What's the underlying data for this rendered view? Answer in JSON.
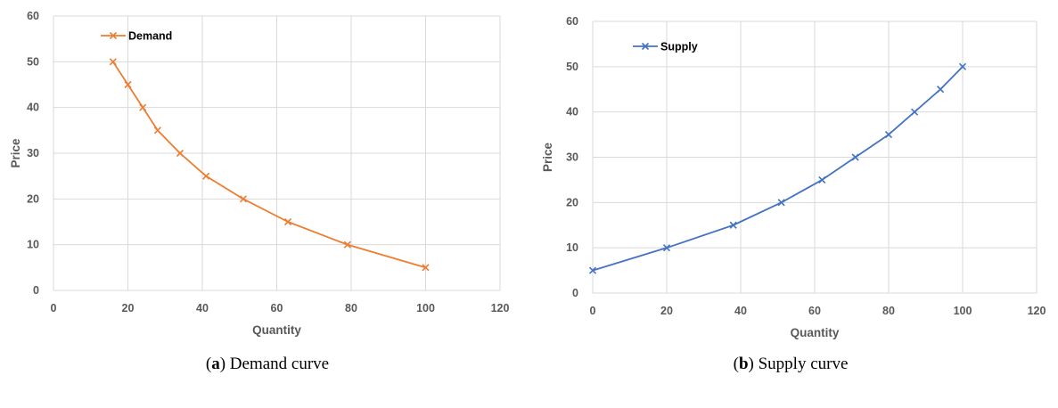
{
  "chart_data": [
    {
      "type": "line",
      "xlabel": "Quantity",
      "ylabel": "Price",
      "xlim": [
        0,
        120
      ],
      "ylim": [
        0,
        60
      ],
      "x_ticks": [
        0,
        20,
        40,
        60,
        80,
        100,
        120
      ],
      "y_ticks": [
        0,
        10,
        20,
        30,
        40,
        50,
        60
      ],
      "grid": true,
      "legend_position": "top-left",
      "series": [
        {
          "name": "Demand",
          "color": "#ED7D31",
          "marker": "x",
          "x": [
            16,
            20,
            24,
            28,
            34,
            41,
            51,
            63,
            79,
            100
          ],
          "y": [
            50,
            45,
            40,
            35,
            30,
            25,
            20,
            15,
            10,
            5
          ]
        }
      ]
    },
    {
      "type": "line",
      "xlabel": "Quantity",
      "ylabel": "Price",
      "xlim": [
        0,
        120
      ],
      "ylim": [
        0,
        60
      ],
      "x_ticks": [
        0,
        20,
        40,
        60,
        80,
        100,
        120
      ],
      "y_ticks": [
        0,
        10,
        20,
        30,
        40,
        50,
        60
      ],
      "grid": true,
      "legend_position": "top-left",
      "series": [
        {
          "name": "Supply",
          "color": "#4472C4",
          "marker": "x",
          "x": [
            0,
            20,
            38,
            51,
            62,
            71,
            80,
            87,
            94,
            100
          ],
          "y": [
            5,
            10,
            15,
            20,
            25,
            30,
            35,
            40,
            45,
            50
          ]
        }
      ]
    }
  ],
  "captions": [
    {
      "letter": "a",
      "text": " Demand curve"
    },
    {
      "letter": "b",
      "text": " Supply curve"
    }
  ]
}
